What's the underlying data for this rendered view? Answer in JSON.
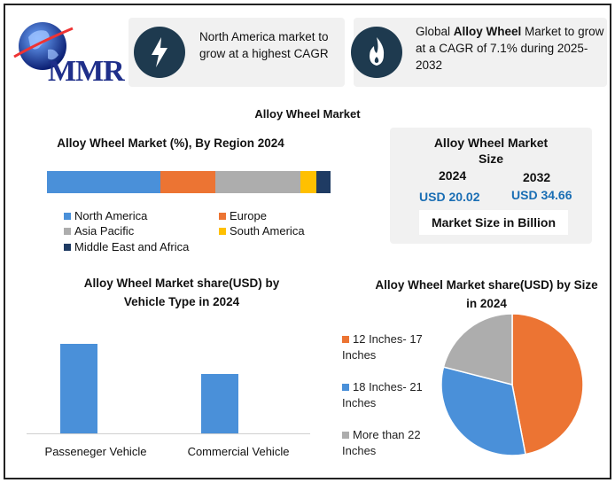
{
  "brand": {
    "logo_text": "MMR"
  },
  "highlights": [
    {
      "text": "North America market to grow at a highest CAGR",
      "icon": "lightning-icon"
    },
    {
      "text_pre": "Global ",
      "text_bold": "Alloy Wheel",
      "text_post": " Market to grow at a CAGR of 7.1% during 2025-2032",
      "icon": "flame-icon"
    }
  ],
  "main_title": "Alloy Wheel Market",
  "region_chart": {
    "title": "Alloy Wheel Market (%), By Region 2024",
    "legend": [
      "North America",
      "Europe",
      "Asia Pacific",
      "South America",
      "Middle East and Africa"
    ]
  },
  "market_size": {
    "title": "Alloy Wheel Market Size",
    "year1": "2024",
    "value1": "USD 20.02",
    "year2": "2032",
    "value2": "USD 34.66",
    "unit": "Market Size in Billion"
  },
  "vehicle_chart": {
    "title": "Alloy Wheel Market share(USD)  by Vehicle Type in 2024"
  },
  "size_chart": {
    "title": "Alloy Wheel Market share(USD)  by Size in 2024"
  },
  "colors": {
    "blue": "#4a90d9",
    "orange": "#ec7433",
    "gray": "#adadad",
    "yellow": "#ffc000",
    "navy": "#1f3b63",
    "accent": "#1a6eb4"
  },
  "chart_data": [
    {
      "type": "bar",
      "stacked": true,
      "orientation": "horizontal",
      "title": "Alloy Wheel Market (%), By Region 2024",
      "categories": [
        "North America",
        "Europe",
        "Asia Pacific",
        "South America",
        "Middle East and Africa"
      ],
      "values": [
        40,
        19.5,
        30,
        5.5,
        5
      ],
      "xlim": [
        0,
        100
      ]
    },
    {
      "type": "bar",
      "title": "Alloy Wheel Market share(USD)  by Vehicle Type in 2024",
      "categories": [
        "Passeneger Vehicle",
        "Commercial Vehicle"
      ],
      "values": [
        100,
        66
      ],
      "ylim": [
        0,
        100
      ],
      "grid": false
    },
    {
      "type": "pie",
      "title": "Alloy Wheel Market share(USD)  by Size in 2024",
      "categories": [
        "12 Inches- 17 Inches",
        "18 Inches- 21 Inches",
        "More than 22 Inches"
      ],
      "values": [
        47,
        32,
        21
      ],
      "legend_position": "left"
    }
  ]
}
